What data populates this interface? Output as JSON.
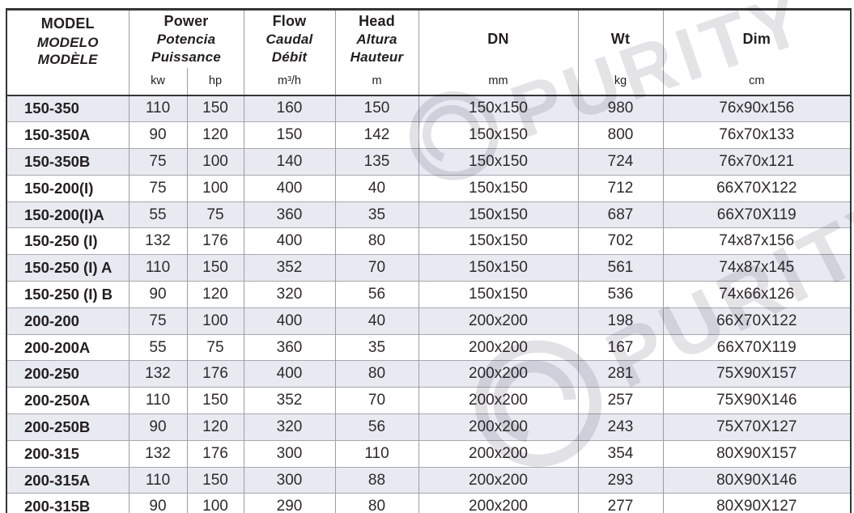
{
  "watermark": {
    "brand": "PURITY"
  },
  "colors": {
    "stripe_row": "#e8eaf2",
    "grid_line": "#9d9da2",
    "frame": "#373435",
    "text": "#231f20",
    "watermark": "#e4e4e7"
  },
  "table": {
    "header": {
      "model": {
        "lines": [
          "MODEL",
          "MODELO",
          "MODÈLE"
        ]
      },
      "power": {
        "lines": [
          "Power",
          "Potencia",
          "Puissance"
        ],
        "units": [
          "kw",
          "hp"
        ]
      },
      "flow": {
        "lines": [
          "Flow",
          "Caudal",
          "Débit"
        ],
        "unit": "m³/h"
      },
      "head": {
        "lines": [
          "Head",
          "Altura",
          "Hauteur"
        ],
        "unit": "m"
      },
      "dn": {
        "label": "DN",
        "unit": "mm"
      },
      "wt": {
        "label": "Wt",
        "unit": "kg"
      },
      "dim": {
        "label": "Dim",
        "unit": "cm"
      }
    },
    "rows": [
      {
        "model": "150-350",
        "kw": "110",
        "hp": "150",
        "flow": "160",
        "head": "150",
        "dn": "150x150",
        "wt": "980",
        "dim": "76x90x156"
      },
      {
        "model": "150-350A",
        "kw": "90",
        "hp": "120",
        "flow": "150",
        "head": "142",
        "dn": "150x150",
        "wt": "800",
        "dim": "76x70x133"
      },
      {
        "model": "150-350B",
        "kw": "75",
        "hp": "100",
        "flow": "140",
        "head": "135",
        "dn": "150x150",
        "wt": "724",
        "dim": "76x70x121"
      },
      {
        "model": "150-200(I)",
        "kw": "75",
        "hp": "100",
        "flow": "400",
        "head": "40",
        "dn": "150x150",
        "wt": "712",
        "dim": "66X70X122"
      },
      {
        "model": "150-200(I)A",
        "kw": "55",
        "hp": "75",
        "flow": "360",
        "head": "35",
        "dn": "150x150",
        "wt": "687",
        "dim": "66X70X119"
      },
      {
        "model": "150-250 (I)",
        "kw": "132",
        "hp": "176",
        "flow": "400",
        "head": "80",
        "dn": "150x150",
        "wt": "702",
        "dim": "74x87x156"
      },
      {
        "model": "150-250 (I) A",
        "kw": "110",
        "hp": "150",
        "flow": "352",
        "head": "70",
        "dn": "150x150",
        "wt": "561",
        "dim": "74x87x145"
      },
      {
        "model": "150-250 (I) B",
        "kw": "90",
        "hp": "120",
        "flow": "320",
        "head": "56",
        "dn": "150x150",
        "wt": "536",
        "dim": "74x66x126"
      },
      {
        "model": "200-200",
        "kw": "75",
        "hp": "100",
        "flow": "400",
        "head": "40",
        "dn": "200x200",
        "wt": "198",
        "dim": "66X70X122"
      },
      {
        "model": "200-200A",
        "kw": "55",
        "hp": "75",
        "flow": "360",
        "head": "35",
        "dn": "200x200",
        "wt": "167",
        "dim": "66X70X119"
      },
      {
        "model": "200-250",
        "kw": "132",
        "hp": "176",
        "flow": "400",
        "head": "80",
        "dn": "200x200",
        "wt": "281",
        "dim": "75X90X157"
      },
      {
        "model": "200-250A",
        "kw": "110",
        "hp": "150",
        "flow": "352",
        "head": "70",
        "dn": "200x200",
        "wt": "257",
        "dim": "75X90X146"
      },
      {
        "model": "200-250B",
        "kw": "90",
        "hp": "120",
        "flow": "320",
        "head": "56",
        "dn": "200x200",
        "wt": "243",
        "dim": "75X70X127"
      },
      {
        "model": "200-315",
        "kw": "132",
        "hp": "176",
        "flow": "300",
        "head": "110",
        "dn": "200x200",
        "wt": "354",
        "dim": "80X90X157"
      },
      {
        "model": "200-315A",
        "kw": "110",
        "hp": "150",
        "flow": "300",
        "head": "88",
        "dn": "200x200",
        "wt": "293",
        "dim": "80X90X146"
      },
      {
        "model": "200-315B",
        "kw": "90",
        "hp": "100",
        "flow": "290",
        "head": "80",
        "dn": "200x200",
        "wt": "277",
        "dim": "80X90X127"
      }
    ]
  }
}
